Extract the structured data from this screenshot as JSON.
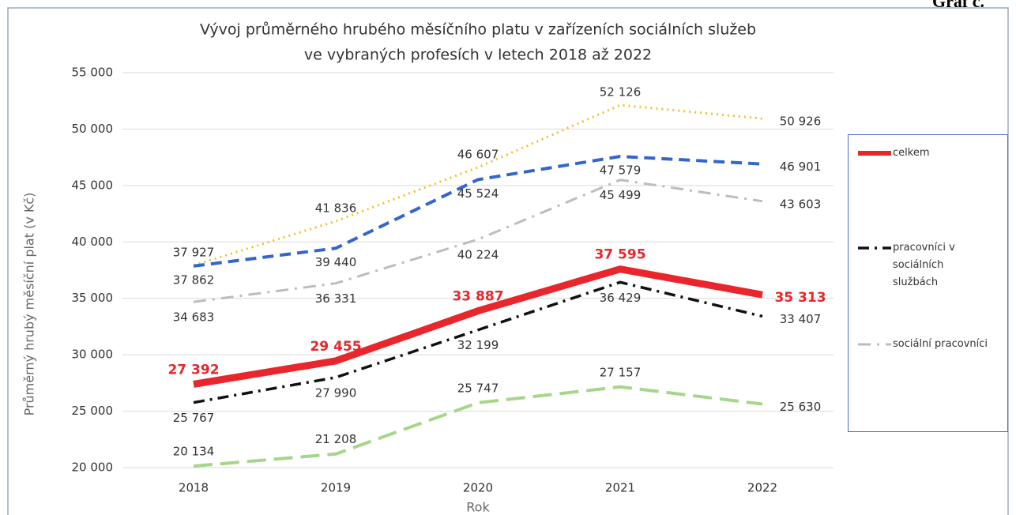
{
  "chart_data": {
    "type": "line",
    "title": [
      "Vývoj průměrného hrubého měsíčního platu v zařízeních sociálních služeb",
      "ve vybraných profesích v letech 2018 až 2022"
    ],
    "annotations": [
      "Graf č."
    ],
    "x_label": "Rok",
    "y_label": "Průměrný hrubý měsíční plat (v Kč)",
    "categories": [
      "2018",
      "2019",
      "2020",
      "2021",
      "2022"
    ],
    "ylim": [
      20000,
      55000
    ],
    "yticks": [
      {
        "value": 20000,
        "label": "20 000"
      },
      {
        "value": 25000,
        "label": "25 000"
      },
      {
        "value": 30000,
        "label": "30 000"
      },
      {
        "value": 35000,
        "label": "35 000"
      },
      {
        "value": 40000,
        "label": "40 000"
      },
      {
        "value": 45000,
        "label": "45 000"
      },
      {
        "value": 50000,
        "label": "50 000"
      },
      {
        "value": 55000,
        "label": "55 000"
      }
    ],
    "grid": true,
    "series": [
      {
        "color": "#f2c12e",
        "values": [
          37927,
          41836,
          46607,
          52126,
          50926
        ],
        "value_labels": [
          "37 927",
          "41 836",
          "46 607",
          "52 126",
          "50 926"
        ]
      },
      {
        "color": "#3366cc",
        "values": [
          37862,
          39440,
          45524,
          47579,
          46901
        ],
        "value_labels": [
          "37 862",
          "39 440",
          "45 524",
          "47 579",
          "46 901"
        ]
      },
      {
        "name": "sociální pracovníci",
        "color": "#bdbdbd",
        "values": [
          34683,
          36331,
          40224,
          45499,
          43603
        ],
        "value_labels": [
          "34 683",
          "36 331",
          "40 224",
          "45 499",
          "43 603"
        ]
      },
      {
        "name": "celkem",
        "color": "#e8262b",
        "values": [
          27392,
          29455,
          33887,
          37595,
          35313
        ],
        "value_labels": [
          "27 392",
          "29 455",
          "33 887",
          "37 595",
          "35 313"
        ]
      },
      {
        "name": "pracovníci v sociálních službách",
        "color": "#111111",
        "values": [
          25767,
          27990,
          32199,
          36429,
          33407
        ],
        "value_labels": [
          "25 767",
          "27 990",
          "32 199",
          "36 429",
          "33 407"
        ]
      },
      {
        "color": "#a6d68a",
        "values": [
          20134,
          21208,
          25747,
          27157,
          25630
        ],
        "value_labels": [
          "20 134",
          "21 208",
          "25 747",
          "27 157",
          "25 630"
        ]
      }
    ]
  }
}
